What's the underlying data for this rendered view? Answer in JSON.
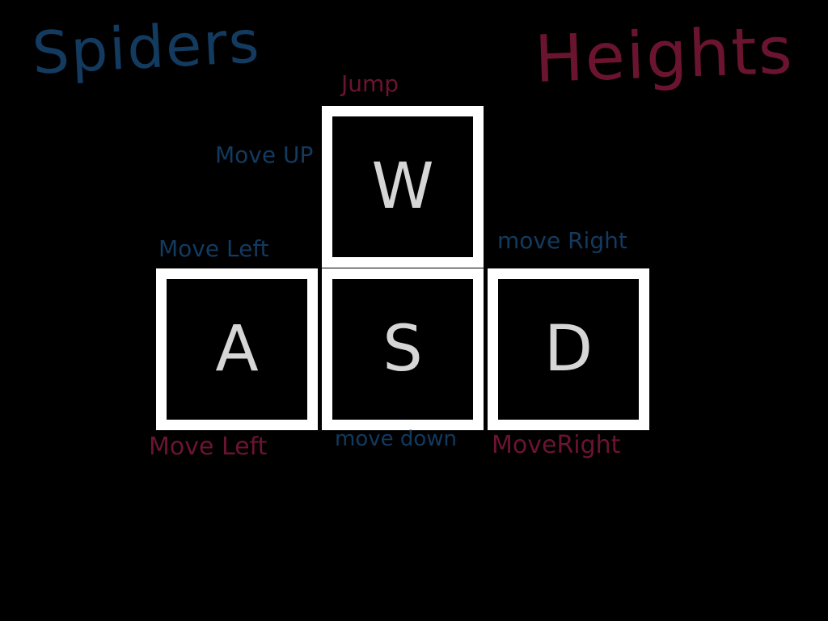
{
  "colors": {
    "background": "#000000",
    "spiders": "#133a5f",
    "heights": "#6b1430",
    "key_border": "#ffffff",
    "key_letter": "#d6d6d6"
  },
  "titles": {
    "spiders": "Spiders",
    "heights": "Heights"
  },
  "keys": {
    "w": "W",
    "a": "A",
    "s": "S",
    "d": "D"
  },
  "spiders_controls": {
    "w": "Move UP",
    "a": "Move Left",
    "s": "move down",
    "d": "move Right"
  },
  "heights_controls": {
    "w": "Jump",
    "a": "Move Left",
    "d": "MoveRight"
  }
}
